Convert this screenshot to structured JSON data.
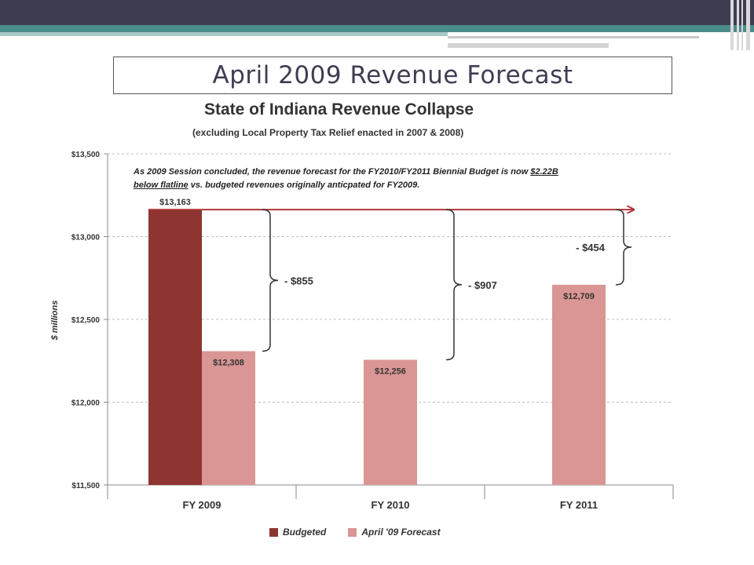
{
  "slide": {
    "title": "April 2009 Revenue Forecast"
  },
  "colors": {
    "budgeted": "#8e3431",
    "forecast": "#d99694",
    "flatline_arrow": "#b03a38",
    "top_bar": "#3f3d52",
    "teal": "#4c8c8a"
  },
  "chart_data": {
    "type": "bar",
    "title": "State of Indiana Revenue Collapse",
    "subtitle": "(excluding  Local Property Tax Relief enacted in 2007 & 2008)",
    "ylabel": "$ millions",
    "xlabel": "",
    "ylim": [
      11500,
      13500
    ],
    "yticks": [
      11500,
      12000,
      12500,
      13000,
      13500
    ],
    "ytick_labels": [
      "$11,500",
      "$12,000",
      "$12,500",
      "$13,000",
      "$13,500"
    ],
    "categories": [
      "FY 2009",
      "FY 2010",
      "FY 2011"
    ],
    "grid": true,
    "legend_position": "bottom",
    "series": [
      {
        "name": "Budgeted",
        "values": [
          13163,
          null,
          null
        ],
        "labels": [
          "$13,163",
          "",
          ""
        ]
      },
      {
        "name": "April '09 Forecast",
        "values": [
          12308,
          12256,
          12709
        ],
        "labels": [
          "$12,308",
          "$12,256",
          "$12,709"
        ]
      }
    ],
    "flatline_value": 13163,
    "gaps": [
      "- $855",
      "- $907",
      "- $454"
    ],
    "annotation": {
      "part1": "As 2009 Session concluded, the revenue forecast for the FY2010/FY2011 Biennial Budget is now ",
      "emph1": "$2.22B",
      "emph2": "below flatline",
      "part2": " vs. budgeted revenues originally anticpated for FY2009."
    }
  }
}
